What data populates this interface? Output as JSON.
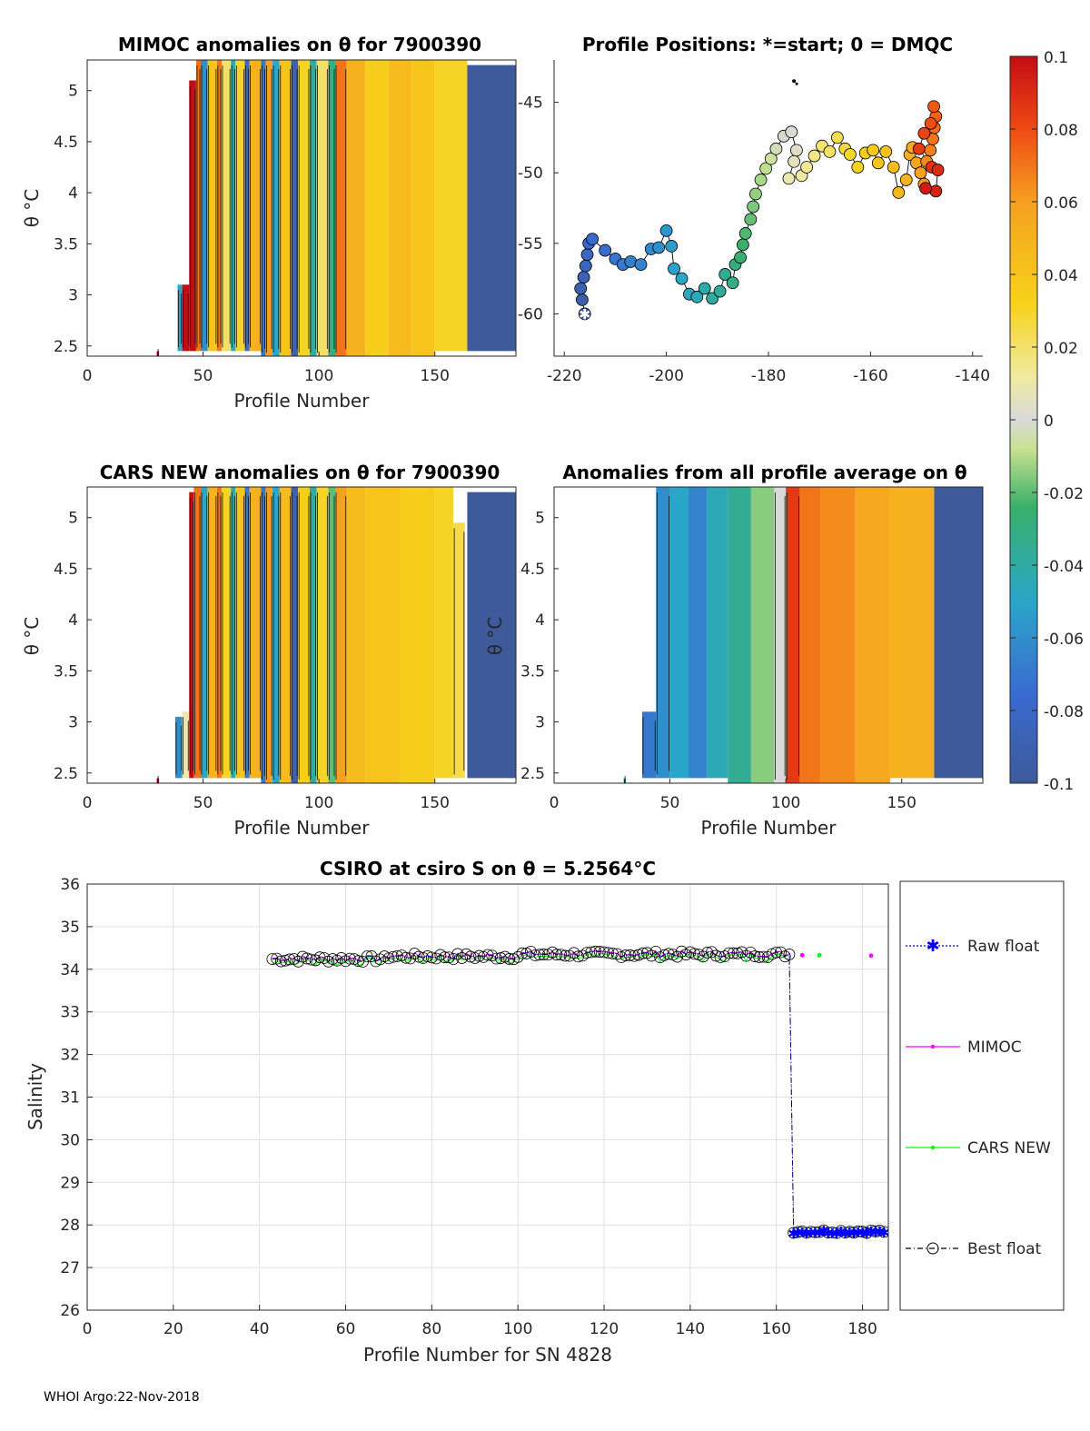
{
  "footer": "WHOI Argo:22-Nov-2018",
  "colorbar": {
    "ticks": [
      "0.1",
      "0.08",
      "0.06",
      "0.04",
      "0.02",
      "0",
      "-0.02",
      "-0.04",
      "-0.06",
      "-0.08",
      "-0.1"
    ],
    "range": [
      -0.1,
      0.1
    ],
    "colormap": "parula/jet-like: blue-cyan-green-yellow-orange-red"
  },
  "chart_data": [
    {
      "id": "mimoc",
      "type": "heatmap",
      "title": "MIMOC anomalies on θ  for 7900390",
      "xlabel": "Profile Number",
      "ylabel": "θ °C",
      "xlim": [
        0,
        185
      ],
      "ylim": [
        2.4,
        5.3
      ],
      "xticks": [
        "0",
        "50",
        "100",
        "150"
      ],
      "yticks": [
        "5",
        "4.5",
        "4",
        "3.5",
        "3",
        "2.5"
      ],
      "xtick_values": [
        0,
        50,
        100,
        150
      ],
      "ytick_values": [
        5,
        4.5,
        4,
        3.5,
        3,
        2.5
      ],
      "stripes": [
        {
          "x0": 30,
          "x1": 31,
          "ybot": 2.4,
          "ytop": 2.45,
          "v": 0.1
        },
        {
          "x0": 39,
          "x1": 41,
          "ybot": 2.45,
          "ytop": 3.1,
          "v": -0.05
        },
        {
          "x0": 41,
          "x1": 44,
          "ybot": 2.45,
          "ytop": 3.1,
          "v": 0.1
        },
        {
          "x0": 44,
          "x1": 47,
          "ybot": 2.45,
          "ytop": 5.1,
          "v": 0.1
        },
        {
          "x0": 47,
          "x1": 49,
          "ybot": 2.45,
          "ytop": 5.3,
          "v": 0.07
        },
        {
          "x0": 49,
          "x1": 52,
          "ybot": 2.45,
          "ytop": 5.3,
          "v": -0.06
        },
        {
          "x0": 52,
          "x1": 56,
          "ybot": 2.45,
          "ytop": 5.3,
          "v": 0.04
        },
        {
          "x0": 56,
          "x1": 58,
          "ybot": 2.45,
          "ytop": 5.3,
          "v": 0.07
        },
        {
          "x0": 58,
          "x1": 62,
          "ybot": 2.45,
          "ytop": 5.3,
          "v": 0.02
        },
        {
          "x0": 62,
          "x1": 64,
          "ybot": 2.45,
          "ytop": 5.3,
          "v": -0.04
        },
        {
          "x0": 64,
          "x1": 68,
          "ybot": 2.45,
          "ytop": 5.3,
          "v": 0.03
        },
        {
          "x0": 68,
          "x1": 70,
          "ybot": 2.45,
          "ytop": 5.3,
          "v": -0.08
        },
        {
          "x0": 70,
          "x1": 75,
          "ybot": 2.45,
          "ytop": 5.3,
          "v": 0.05
        },
        {
          "x0": 75,
          "x1": 77,
          "ybot": 2.4,
          "ytop": 5.3,
          "v": -0.07
        },
        {
          "x0": 77,
          "x1": 80,
          "ybot": 2.4,
          "ytop": 5.3,
          "v": 0.06
        },
        {
          "x0": 80,
          "x1": 83,
          "ybot": 2.4,
          "ytop": 5.3,
          "v": -0.05
        },
        {
          "x0": 83,
          "x1": 88,
          "ybot": 2.4,
          "ytop": 5.3,
          "v": 0.04
        },
        {
          "x0": 88,
          "x1": 91,
          "ybot": 2.4,
          "ytop": 5.3,
          "v": -0.09
        },
        {
          "x0": 91,
          "x1": 96,
          "ybot": 2.4,
          "ytop": 5.3,
          "v": 0.03
        },
        {
          "x0": 96,
          "x1": 99,
          "ybot": 2.4,
          "ytop": 5.3,
          "v": -0.04
        },
        {
          "x0": 99,
          "x1": 104,
          "ybot": 2.4,
          "ytop": 5.3,
          "v": 0.02
        },
        {
          "x0": 104,
          "x1": 107,
          "ybot": 2.4,
          "ytop": 5.3,
          "v": -0.03
        },
        {
          "x0": 107,
          "x1": 112,
          "ybot": 2.4,
          "ytop": 5.3,
          "v": 0.07
        },
        {
          "x0": 112,
          "x1": 120,
          "ybot": 2.4,
          "ytop": 5.3,
          "v": 0.05
        },
        {
          "x0": 120,
          "x1": 130,
          "ybot": 2.4,
          "ytop": 5.3,
          "v": 0.035
        },
        {
          "x0": 130,
          "x1": 140,
          "ybot": 2.4,
          "ytop": 5.3,
          "v": 0.045
        },
        {
          "x0": 140,
          "x1": 150,
          "ybot": 2.4,
          "ytop": 5.3,
          "v": 0.04
        },
        {
          "x0": 150,
          "x1": 164,
          "ybot": 2.45,
          "ytop": 5.3,
          "v": 0.03
        },
        {
          "x0": 164,
          "x1": 185,
          "ybot": 2.45,
          "ytop": 5.25,
          "v": -0.1
        }
      ]
    },
    {
      "id": "positions",
      "type": "scatter",
      "title": "Profile Positions: *=start; 0 = DMQC",
      "xlim": [
        -222,
        -138
      ],
      "ylim": [
        -63,
        -42
      ],
      "xticks": [
        "-220",
        "-200",
        "-180",
        "-160",
        "-140"
      ],
      "yticks": [
        "-45",
        "-50",
        "-55",
        "-60"
      ],
      "xtick_values": [
        -220,
        -200,
        -180,
        -160,
        -140
      ],
      "ytick_values": [
        -45,
        -50,
        -55,
        -60
      ],
      "start": [
        -216,
        -60
      ],
      "points": [
        [
          -216,
          -60
        ],
        [
          -216.5,
          -59
        ],
        [
          -216.8,
          -58.2
        ],
        [
          -216.2,
          -57.4
        ],
        [
          -215.8,
          -56.6
        ],
        [
          -215.5,
          -55.8
        ],
        [
          -215.2,
          -55
        ],
        [
          -214.5,
          -54.7
        ],
        [
          -212,
          -55.5
        ],
        [
          -210,
          -56.1
        ],
        [
          -208.5,
          -56.5
        ],
        [
          -207,
          -56.3
        ],
        [
          -205,
          -56.5
        ],
        [
          -203,
          -55.4
        ],
        [
          -201.5,
          -55.3
        ],
        [
          -200,
          -54.1
        ],
        [
          -199,
          -55.2
        ],
        [
          -198.5,
          -56.8
        ],
        [
          -197,
          -57.5
        ],
        [
          -195.5,
          -58.6
        ],
        [
          -194,
          -58.8
        ],
        [
          -192.5,
          -58.2
        ],
        [
          -191,
          -58.9
        ],
        [
          -189.5,
          -58.4
        ],
        [
          -188.5,
          -57.2
        ],
        [
          -187,
          -57.8
        ],
        [
          -186.5,
          -56.5
        ],
        [
          -185.5,
          -56
        ],
        [
          -185,
          -55.1
        ],
        [
          -184.5,
          -54.3
        ],
        [
          -183.5,
          -53.3
        ],
        [
          -183,
          -52.4
        ],
        [
          -182.5,
          -51.5
        ],
        [
          -181.5,
          -50.5
        ],
        [
          -180.5,
          -49.7
        ],
        [
          -179.5,
          -49
        ],
        [
          -178.5,
          -48.3
        ],
        [
          -177,
          -47.4
        ],
        [
          -175.5,
          -47.1
        ],
        [
          -174.5,
          -48.4
        ],
        [
          -175,
          -49.2
        ],
        [
          -176,
          -50.4
        ],
        [
          -173.5,
          -50.2
        ],
        [
          -172.5,
          -49.6
        ],
        [
          -171,
          -48.8
        ],
        [
          -169.5,
          -48.1
        ],
        [
          -168,
          -48.5
        ],
        [
          -166.5,
          -47.5
        ],
        [
          -165,
          -48.3
        ],
        [
          -164,
          -48.7
        ],
        [
          -162.5,
          -49.6
        ],
        [
          -161,
          -48.6
        ],
        [
          -159.5,
          -48.4
        ],
        [
          -158.5,
          -49.3
        ],
        [
          -157,
          -48.5
        ],
        [
          -155.5,
          -49.6
        ],
        [
          -154.5,
          -51.4
        ],
        [
          -153,
          -50.5
        ],
        [
          -152.3,
          -48.7
        ],
        [
          -151.8,
          -48.2
        ],
        [
          -151,
          -49.3
        ],
        [
          -150.2,
          -50
        ],
        [
          -149.5,
          -50.8
        ],
        [
          -149,
          -49.2
        ],
        [
          -148.3,
          -48.4
        ],
        [
          -147.8,
          -47.6
        ],
        [
          -147.5,
          -46.8
        ],
        [
          -147.2,
          -46
        ],
        [
          -147.6,
          -45.3
        ],
        [
          -148.2,
          -46.5
        ],
        [
          -149.5,
          -47.2
        ],
        [
          -150.5,
          -48.3
        ],
        [
          -148,
          -49.6
        ],
        [
          -146.8,
          -49.8
        ],
        [
          -147.2,
          -51.3
        ],
        [
          -149.2,
          -51.1
        ]
      ],
      "stray": [
        -175,
        -43.5
      ]
    },
    {
      "id": "cars",
      "type": "heatmap",
      "title": "CARS NEW anomalies on θ for 7900390",
      "xlabel": "Profile Number",
      "ylabel": "θ °C",
      "xlim": [
        0,
        185
      ],
      "ylim": [
        2.4,
        5.3
      ],
      "xticks": [
        "0",
        "50",
        "100",
        "150"
      ],
      "yticks": [
        "5",
        "4.5",
        "4",
        "3.5",
        "3",
        "2.5"
      ],
      "xtick_values": [
        0,
        50,
        100,
        150
      ],
      "ytick_values": [
        5,
        4.5,
        4,
        3.5,
        3,
        2.5
      ],
      "stripes": [
        {
          "x0": 30,
          "x1": 31,
          "ybot": 2.4,
          "ytop": 2.45,
          "v": 0.1
        },
        {
          "x0": 38,
          "x1": 41,
          "ybot": 2.45,
          "ytop": 3.05,
          "v": -0.06
        },
        {
          "x0": 41,
          "x1": 44,
          "ybot": 2.45,
          "ytop": 3.1,
          "v": 0.01
        },
        {
          "x0": 44,
          "x1": 46,
          "ybot": 2.45,
          "ytop": 5.25,
          "v": 0.1
        },
        {
          "x0": 46,
          "x1": 49,
          "ybot": 2.45,
          "ytop": 5.3,
          "v": 0.07
        },
        {
          "x0": 49,
          "x1": 52,
          "ybot": 2.45,
          "ytop": 5.3,
          "v": -0.05
        },
        {
          "x0": 52,
          "x1": 56,
          "ybot": 2.45,
          "ytop": 5.3,
          "v": 0.05
        },
        {
          "x0": 56,
          "x1": 58,
          "ybot": 2.45,
          "ytop": 5.3,
          "v": 0.07
        },
        {
          "x0": 58,
          "x1": 62,
          "ybot": 2.45,
          "ytop": 5.3,
          "v": 0.03
        },
        {
          "x0": 62,
          "x1": 64,
          "ybot": 2.45,
          "ytop": 5.3,
          "v": -0.04
        },
        {
          "x0": 64,
          "x1": 68,
          "ybot": 2.45,
          "ytop": 5.3,
          "v": 0.04
        },
        {
          "x0": 68,
          "x1": 70,
          "ybot": 2.45,
          "ytop": 5.3,
          "v": -0.07
        },
        {
          "x0": 70,
          "x1": 75,
          "ybot": 2.45,
          "ytop": 5.3,
          "v": 0.05
        },
        {
          "x0": 75,
          "x1": 77,
          "ybot": 2.4,
          "ytop": 5.3,
          "v": -0.07
        },
        {
          "x0": 77,
          "x1": 80,
          "ybot": 2.4,
          "ytop": 5.3,
          "v": 0.06
        },
        {
          "x0": 80,
          "x1": 83,
          "ybot": 2.4,
          "ytop": 5.3,
          "v": -0.05
        },
        {
          "x0": 83,
          "x1": 88,
          "ybot": 2.4,
          "ytop": 5.3,
          "v": 0.045
        },
        {
          "x0": 88,
          "x1": 91,
          "ybot": 2.4,
          "ytop": 5.3,
          "v": -0.09
        },
        {
          "x0": 91,
          "x1": 96,
          "ybot": 2.4,
          "ytop": 5.3,
          "v": 0.035
        },
        {
          "x0": 96,
          "x1": 99,
          "ybot": 2.4,
          "ytop": 5.3,
          "v": -0.04
        },
        {
          "x0": 99,
          "x1": 104,
          "ybot": 2.4,
          "ytop": 5.3,
          "v": 0.03
        },
        {
          "x0": 104,
          "x1": 107,
          "ybot": 2.4,
          "ytop": 5.3,
          "v": -0.02
        },
        {
          "x0": 107,
          "x1": 112,
          "ybot": 2.4,
          "ytop": 5.3,
          "v": 0.06
        },
        {
          "x0": 112,
          "x1": 120,
          "ybot": 2.4,
          "ytop": 5.3,
          "v": 0.045
        },
        {
          "x0": 120,
          "x1": 135,
          "ybot": 2.4,
          "ytop": 5.3,
          "v": 0.04
        },
        {
          "x0": 135,
          "x1": 150,
          "ybot": 2.4,
          "ytop": 5.3,
          "v": 0.035
        },
        {
          "x0": 150,
          "x1": 158,
          "ybot": 2.45,
          "ytop": 5.3,
          "v": 0.03
        },
        {
          "x0": 158,
          "x1": 163,
          "ybot": 2.45,
          "ytop": 4.95,
          "v": 0.025
        },
        {
          "x0": 164,
          "x1": 185,
          "ybot": 2.45,
          "ytop": 5.25,
          "v": -0.1
        }
      ]
    },
    {
      "id": "allavg",
      "type": "heatmap",
      "title": "Anomalies from all profile average on θ",
      "xlabel": "Profile Number",
      "ylabel": "θ °C",
      "xlim": [
        0,
        185
      ],
      "ylim": [
        2.4,
        5.3
      ],
      "xticks": [
        "0",
        "50",
        "100",
        "150"
      ],
      "yticks": [
        "5",
        "4.5",
        "4",
        "3.5",
        "3",
        "2.5"
      ],
      "xtick_values": [
        0,
        50,
        100,
        150
      ],
      "ytick_values": [
        5,
        4.5,
        4,
        3.5,
        3,
        2.5
      ],
      "stripes": [
        {
          "x0": 30,
          "x1": 31,
          "ybot": 2.4,
          "ytop": 2.45,
          "v": -0.05
        },
        {
          "x0": 38,
          "x1": 44,
          "ybot": 2.45,
          "ytop": 3.1,
          "v": -0.07
        },
        {
          "x0": 44,
          "x1": 50,
          "ybot": 2.45,
          "ytop": 5.3,
          "v": -0.06
        },
        {
          "x0": 50,
          "x1": 58,
          "ybot": 2.45,
          "ytop": 5.3,
          "v": -0.05
        },
        {
          "x0": 58,
          "x1": 66,
          "ybot": 2.45,
          "ytop": 5.3,
          "v": -0.065
        },
        {
          "x0": 66,
          "x1": 75,
          "ybot": 2.45,
          "ytop": 5.3,
          "v": -0.045
        },
        {
          "x0": 75,
          "x1": 85,
          "ybot": 2.4,
          "ytop": 5.3,
          "v": -0.035
        },
        {
          "x0": 85,
          "x1": 95,
          "ybot": 2.4,
          "ytop": 5.3,
          "v": -0.015
        },
        {
          "x0": 95,
          "x1": 100,
          "ybot": 2.4,
          "ytop": 5.3,
          "v": 0.0
        },
        {
          "x0": 100,
          "x1": 106,
          "ybot": 2.4,
          "ytop": 5.3,
          "v": 0.085
        },
        {
          "x0": 106,
          "x1": 115,
          "ybot": 2.4,
          "ytop": 5.3,
          "v": 0.07
        },
        {
          "x0": 115,
          "x1": 130,
          "ybot": 2.4,
          "ytop": 5.3,
          "v": 0.065
        },
        {
          "x0": 130,
          "x1": 145,
          "ybot": 2.4,
          "ytop": 5.3,
          "v": 0.055
        },
        {
          "x0": 145,
          "x1": 164,
          "ybot": 2.45,
          "ytop": 5.3,
          "v": 0.05
        },
        {
          "x0": 164,
          "x1": 185,
          "ybot": 2.45,
          "ytop": 5.3,
          "v": -0.1
        }
      ]
    },
    {
      "id": "salinity",
      "type": "line",
      "title": "CSIRO at csiro S on θ = 5.2564°C",
      "xlabel": "Profile Number for SN 4828",
      "ylabel": "Salinity",
      "xlim": [
        0,
        186
      ],
      "ylim": [
        26,
        36
      ],
      "xticks": [
        "0",
        "20",
        "40",
        "60",
        "80",
        "100",
        "120",
        "140",
        "160",
        "180"
      ],
      "yticks": [
        "36",
        "35",
        "34",
        "33",
        "32",
        "31",
        "30",
        "29",
        "28",
        "27",
        "26"
      ],
      "xtick_values": [
        0,
        20,
        40,
        60,
        80,
        100,
        120,
        140,
        160,
        180
      ],
      "ytick_values": [
        36,
        35,
        34,
        33,
        32,
        31,
        30,
        29,
        28,
        27,
        26
      ],
      "grid": true,
      "legend": [
        "Raw float",
        "MIMOC",
        "CARS NEW",
        "Best float"
      ],
      "series": [
        {
          "name": "Raw float",
          "color": "#0000ff",
          "x_start": 43,
          "x_end": 185,
          "segments": [
            [
              43,
              164,
              34.3
            ],
            [
              164,
              185,
              27.85
            ]
          ]
        },
        {
          "name": "MIMOC",
          "color": "#ff00ff",
          "points": [
            [
              166,
              34.33
            ],
            [
              182,
              34.32
            ]
          ]
        },
        {
          "name": "CARS NEW",
          "color": "#00ff00",
          "points": [
            [
              170,
              34.33
            ]
          ]
        },
        {
          "name": "Best float",
          "color": "#000000",
          "jump_at": 164,
          "before": 34.3,
          "after": 27.85
        }
      ]
    }
  ]
}
